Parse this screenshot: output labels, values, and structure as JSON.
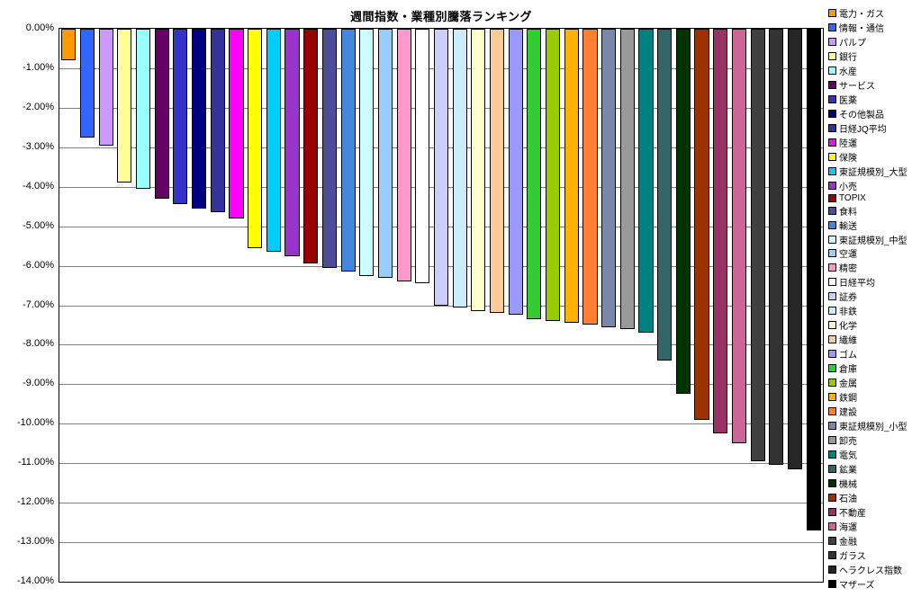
{
  "chart_data": {
    "type": "bar",
    "title": "週間指数・業種別騰落ランキング",
    "xlabel": "",
    "ylabel": "",
    "ylim": [
      -14,
      0
    ],
    "grid": true,
    "grid_color": "#808080",
    "plot_border_color": "#000000",
    "bar_border_color": "#000000",
    "background_color": "#FFFFFF",
    "legend_position": "right",
    "ytick_labels": [
      "0.00%",
      "-1.00%",
      "-2.00%",
      "-3.00%",
      "-4.00%",
      "-5.00%",
      "-6.00%",
      "-7.00%",
      "-8.00%",
      "-9.00%",
      "-10.00%",
      "-11.00%",
      "-12.00%",
      "-13.00%",
      "-14.00%"
    ],
    "categories": [
      "電力・ガス",
      "情報・通信",
      "パルプ",
      "銀行",
      "水産",
      "サービス",
      "医薬",
      "その他製品",
      "日経JQ平均",
      "陸運",
      "保険",
      "東証規模別_大型",
      "小売",
      "TOPIX",
      "食料",
      "輸送",
      "東証規模別_中型",
      "空運",
      "精密",
      "日経平均",
      "証券",
      "非鉄",
      "化学",
      "繊維",
      "ゴム",
      "倉庫",
      "金属",
      "鉄鋼",
      "建設",
      "東証規模別_小型",
      "卸売",
      "電気",
      "鉱業",
      "機械",
      "石油",
      "不動産",
      "海運",
      "金融",
      "ガラス",
      "ヘラクレス指数",
      "マザーズ"
    ],
    "values": [
      -0.8,
      -2.75,
      -2.95,
      -3.9,
      -4.05,
      -4.3,
      -4.45,
      -4.55,
      -4.65,
      -4.8,
      -5.55,
      -5.65,
      -5.75,
      -5.95,
      -6.05,
      -6.15,
      -6.25,
      -6.3,
      -6.4,
      -6.45,
      -7.0,
      -7.05,
      -7.15,
      -7.2,
      -7.25,
      -7.35,
      -7.4,
      -7.45,
      -7.5,
      -7.55,
      -7.6,
      -7.7,
      -8.4,
      -9.25,
      -9.9,
      -10.25,
      -10.5,
      -10.95,
      -11.05,
      -11.15,
      -12.7
    ],
    "colors": [
      "#FF9900",
      "#3366FF",
      "#CC99FF",
      "#FFFF99",
      "#99FFFF",
      "#660066",
      "#3333CC",
      "#000080",
      "#333399",
      "#FF00FF",
      "#FFFF00",
      "#00CCFF",
      "#9933CC",
      "#990000",
      "#4D4D99",
      "#4488DD",
      "#CCFFFF",
      "#99CCFF",
      "#FF99CC",
      "#FFFFFF",
      "#CCCCFF",
      "#CCECFF",
      "#FFFFCC",
      "#FFCC99",
      "#9999FF",
      "#33CC33",
      "#99CC00",
      "#FFB300",
      "#FF8033",
      "#7788AA",
      "#999999",
      "#008080",
      "#336666",
      "#003300",
      "#993300",
      "#993366",
      "#CC6699",
      "#404040",
      "#333333",
      "#262626",
      "#000000"
    ]
  }
}
